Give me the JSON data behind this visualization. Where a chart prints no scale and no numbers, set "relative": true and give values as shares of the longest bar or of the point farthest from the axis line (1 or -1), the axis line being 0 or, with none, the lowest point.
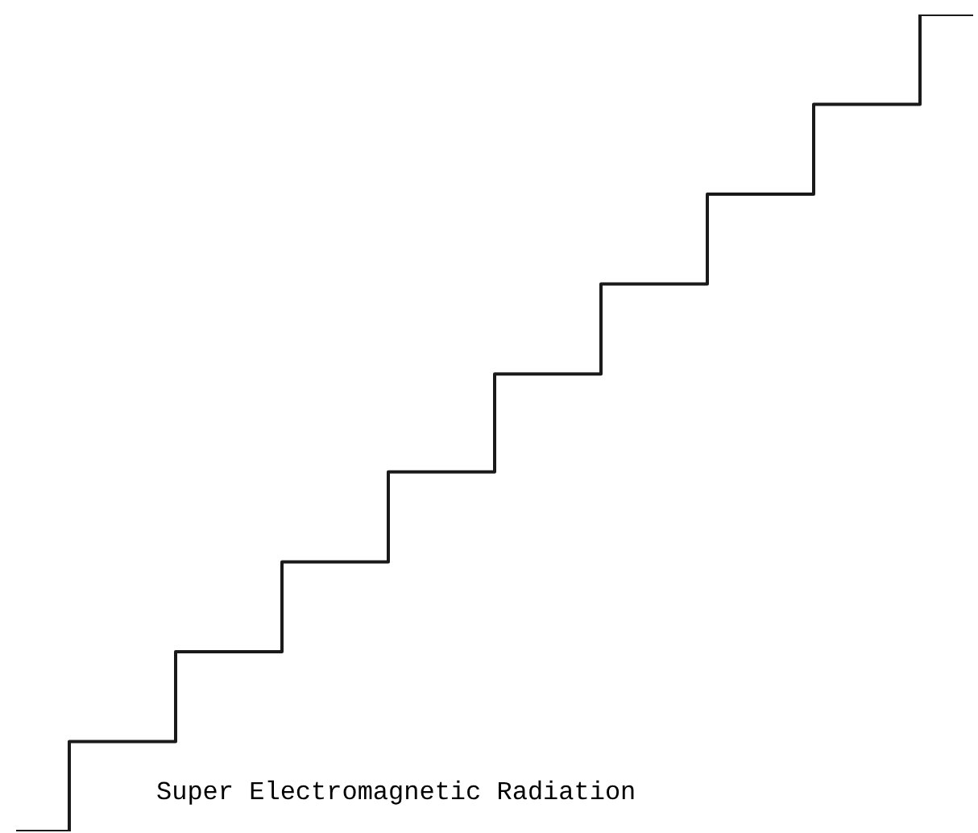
{
  "chart_data": {
    "type": "step",
    "relative": true,
    "categories": [
      null,
      null,
      null,
      null,
      null,
      null,
      null,
      null,
      null,
      null
    ],
    "values": [
      0,
      0.11,
      0.22,
      0.33,
      0.44,
      0.56,
      0.67,
      0.78,
      0.89,
      1
    ],
    "color": "#1a1a1a",
    "annotations": [
      "Super Electromagnetic Radiation"
    ]
  }
}
